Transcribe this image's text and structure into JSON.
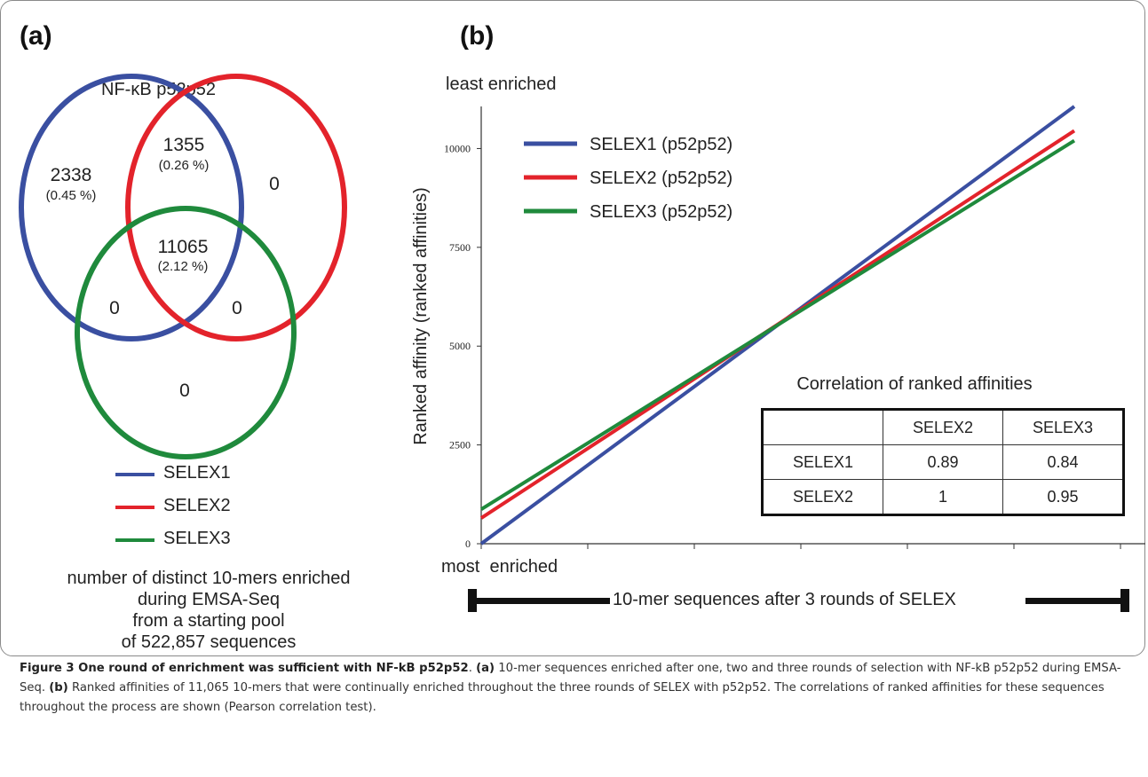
{
  "panel_a": {
    "label": "(a)",
    "title": "NF-κB p52p52",
    "regions": {
      "selex1_only": {
        "count": "2338",
        "pct": "(0.45 %)"
      },
      "selex1_2": {
        "count": "1355",
        "pct": "(0.26 %)"
      },
      "selex2_only": {
        "count": "0"
      },
      "all_three": {
        "count": "11065",
        "pct": "(2.12 %)"
      },
      "selex1_3": {
        "count": "0"
      },
      "selex2_3": {
        "count": "0"
      },
      "selex3_only": {
        "count": "0"
      }
    },
    "legend": [
      {
        "label": "SELEX1",
        "color": "#3a4fa1"
      },
      {
        "label": "SELEX2",
        "color": "#e3232b"
      },
      {
        "label": "SELEX3",
        "color": "#1f8a3c"
      }
    ],
    "caption_lines": [
      "number of distinct 10-mers enriched",
      "during EMSA-Seq",
      "from a starting pool",
      "of 522,857 sequences"
    ]
  },
  "panel_b": {
    "label": "(b)",
    "top_label": "least enriched",
    "bottom_label": "most  enriched",
    "bar_label": "10-mer sequences after 3 rounds of SELEX",
    "table_title": "Correlation of ranked affinities",
    "table": {
      "headers": [
        "",
        "SELEX2",
        "SELEX3"
      ],
      "rows": [
        [
          "SELEX1",
          "0.89",
          "0.84"
        ],
        [
          "SELEX2",
          "1",
          "0.95"
        ]
      ]
    }
  },
  "chart_data": {
    "type": "line",
    "title": "",
    "xlabel": "",
    "ylabel": "Ranked affinity (ranked affinities)",
    "ylim": [
      0,
      11065
    ],
    "xlim": [
      0,
      11065
    ],
    "yticks": [
      0,
      2500,
      5000,
      7500,
      10000
    ],
    "grid": false,
    "legend_position": "top-left",
    "series": [
      {
        "name": "SELEX1 (p52p52)",
        "color": "#3a4fa1",
        "points": [
          [
            0,
            0
          ],
          [
            11065,
            11065
          ]
        ]
      },
      {
        "name": "SELEX2 (p52p52)",
        "color": "#e3232b",
        "points": [
          [
            0,
            650
          ],
          [
            11065,
            10450
          ]
        ]
      },
      {
        "name": "SELEX3 (p52p52)",
        "color": "#1f8a3c",
        "points": [
          [
            0,
            870
          ],
          [
            11065,
            10200
          ]
        ]
      }
    ]
  },
  "caption": {
    "fig": "Figure 3 One round of enrichment was sufficient with NF-kB p52p52",
    "a_tag": "(a)",
    "a_text": " 10-mer sequences enriched after one, two and three rounds of selection with NF-kB p52p52 during EMSA-Seq. ",
    "b_tag": "(b)",
    "b_text": " Ranked affinities of 11,065 10-mers that were continually enriched throughout the three rounds of SELEX with p52p52. The correlations of ranked affinities for these sequences throughout the process are shown (Pearson correlation test)."
  }
}
